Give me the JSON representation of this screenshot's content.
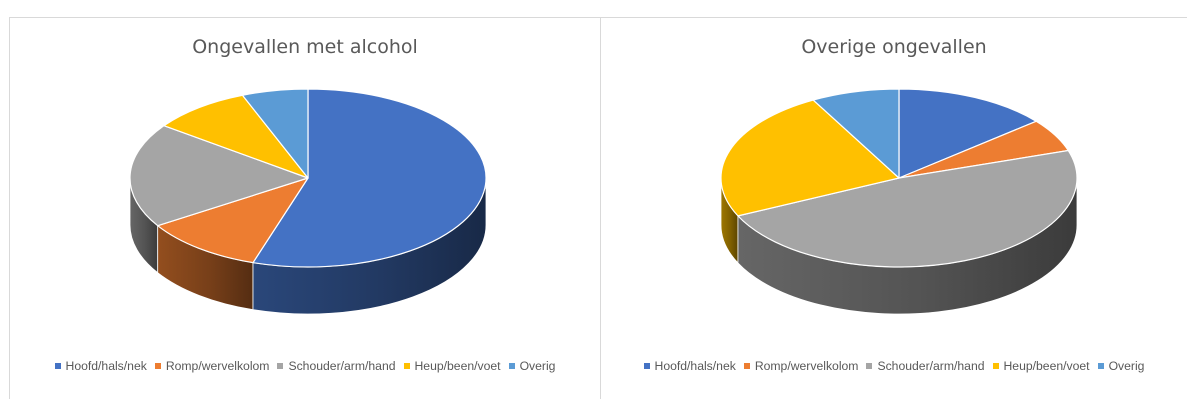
{
  "colors": {
    "Hoofd/hals/nek": "#4472c4",
    "Romp/wervelkolom": "#ed7d31",
    "Schouder/arm/hand": "#a5a5a5",
    "Heup/been/voet": "#ffc000",
    "Overig": "#5b9bd5"
  },
  "chart_data": [
    {
      "type": "pie",
      "subtype": "3d-pie",
      "title": "Ongevallen met alcohol",
      "categories": [
        "Hoofd/hals/nek",
        "Romp/wervelkolom",
        "Schouder/arm/hand",
        "Heup/been/voet",
        "Overig"
      ],
      "values": [
        55,
        11,
        19,
        9,
        6
      ],
      "unit": "percent (estimated)",
      "legend_position": "bottom",
      "data_labels": false
    },
    {
      "type": "pie",
      "subtype": "3d-pie",
      "title": "Overige ongevallen",
      "categories": [
        "Hoofd/hals/nek",
        "Romp/wervelkolom",
        "Schouder/arm/hand",
        "Heup/been/voet",
        "Overig"
      ],
      "values": [
        14,
        6,
        48,
        24,
        8
      ],
      "unit": "percent (estimated)",
      "legend_position": "bottom",
      "data_labels": false
    }
  ]
}
